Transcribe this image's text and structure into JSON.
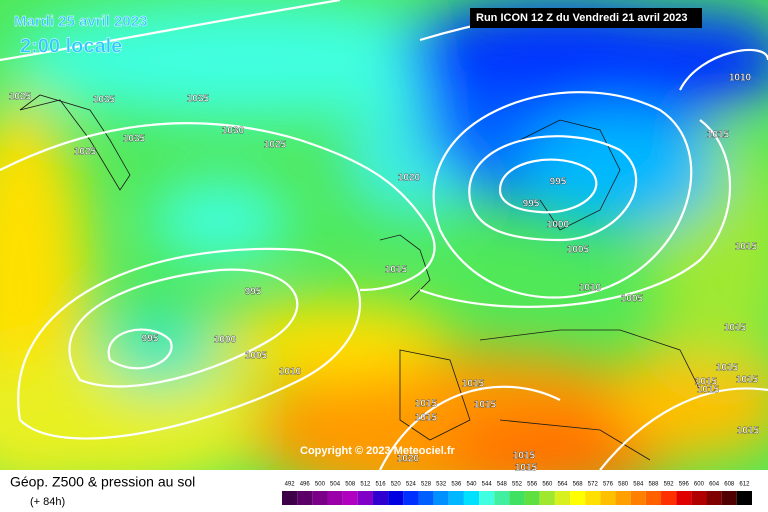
{
  "header": {
    "date": "Mardi 25 avril 2023",
    "time": "2:00 locale",
    "run": "Run ICON 12 Z du Vendredi 21 avril 2023"
  },
  "copyright": "Copyright © 2023 Meteociel.fr",
  "footer": {
    "title": "Géop. Z500 & pression au sol",
    "subtitle": "(+ 84h)"
  },
  "isobar_labels": [
    1025,
    1035,
    1035,
    1035,
    1025,
    1030,
    1025,
    1020,
    1015,
    995,
    995,
    1000,
    1005,
    1010,
    995,
    995,
    1000,
    1005,
    1010,
    1005,
    1010,
    1015,
    1015,
    1015,
    1015,
    1015,
    1015,
    1015,
    1015,
    1015,
    1015,
    1015,
    1015,
    1015,
    1015,
    1020
  ],
  "legend": {
    "labels": [
      492,
      496,
      500,
      504,
      508,
      512,
      516,
      520,
      524,
      528,
      532,
      536,
      540,
      544,
      548,
      552,
      556,
      560,
      564,
      568,
      572,
      576,
      580,
      584,
      588,
      592,
      596,
      600,
      604,
      608,
      612
    ],
    "colors": [
      "#3d0048",
      "#5a0066",
      "#7a0088",
      "#9a00a8",
      "#b000c0",
      "#8000c8",
      "#3000d0",
      "#0000e0",
      "#0030ff",
      "#0060ff",
      "#0090ff",
      "#00b8ff",
      "#00e0ff",
      "#40ffe0",
      "#40f0a0",
      "#40e060",
      "#60e040",
      "#a0e830",
      "#d8f020",
      "#ffff00",
      "#ffe000",
      "#ffc000",
      "#ffa000",
      "#ff8000",
      "#ff6000",
      "#ff3000",
      "#e00000",
      "#b00000",
      "#800000",
      "#500000",
      "#000000"
    ]
  }
}
